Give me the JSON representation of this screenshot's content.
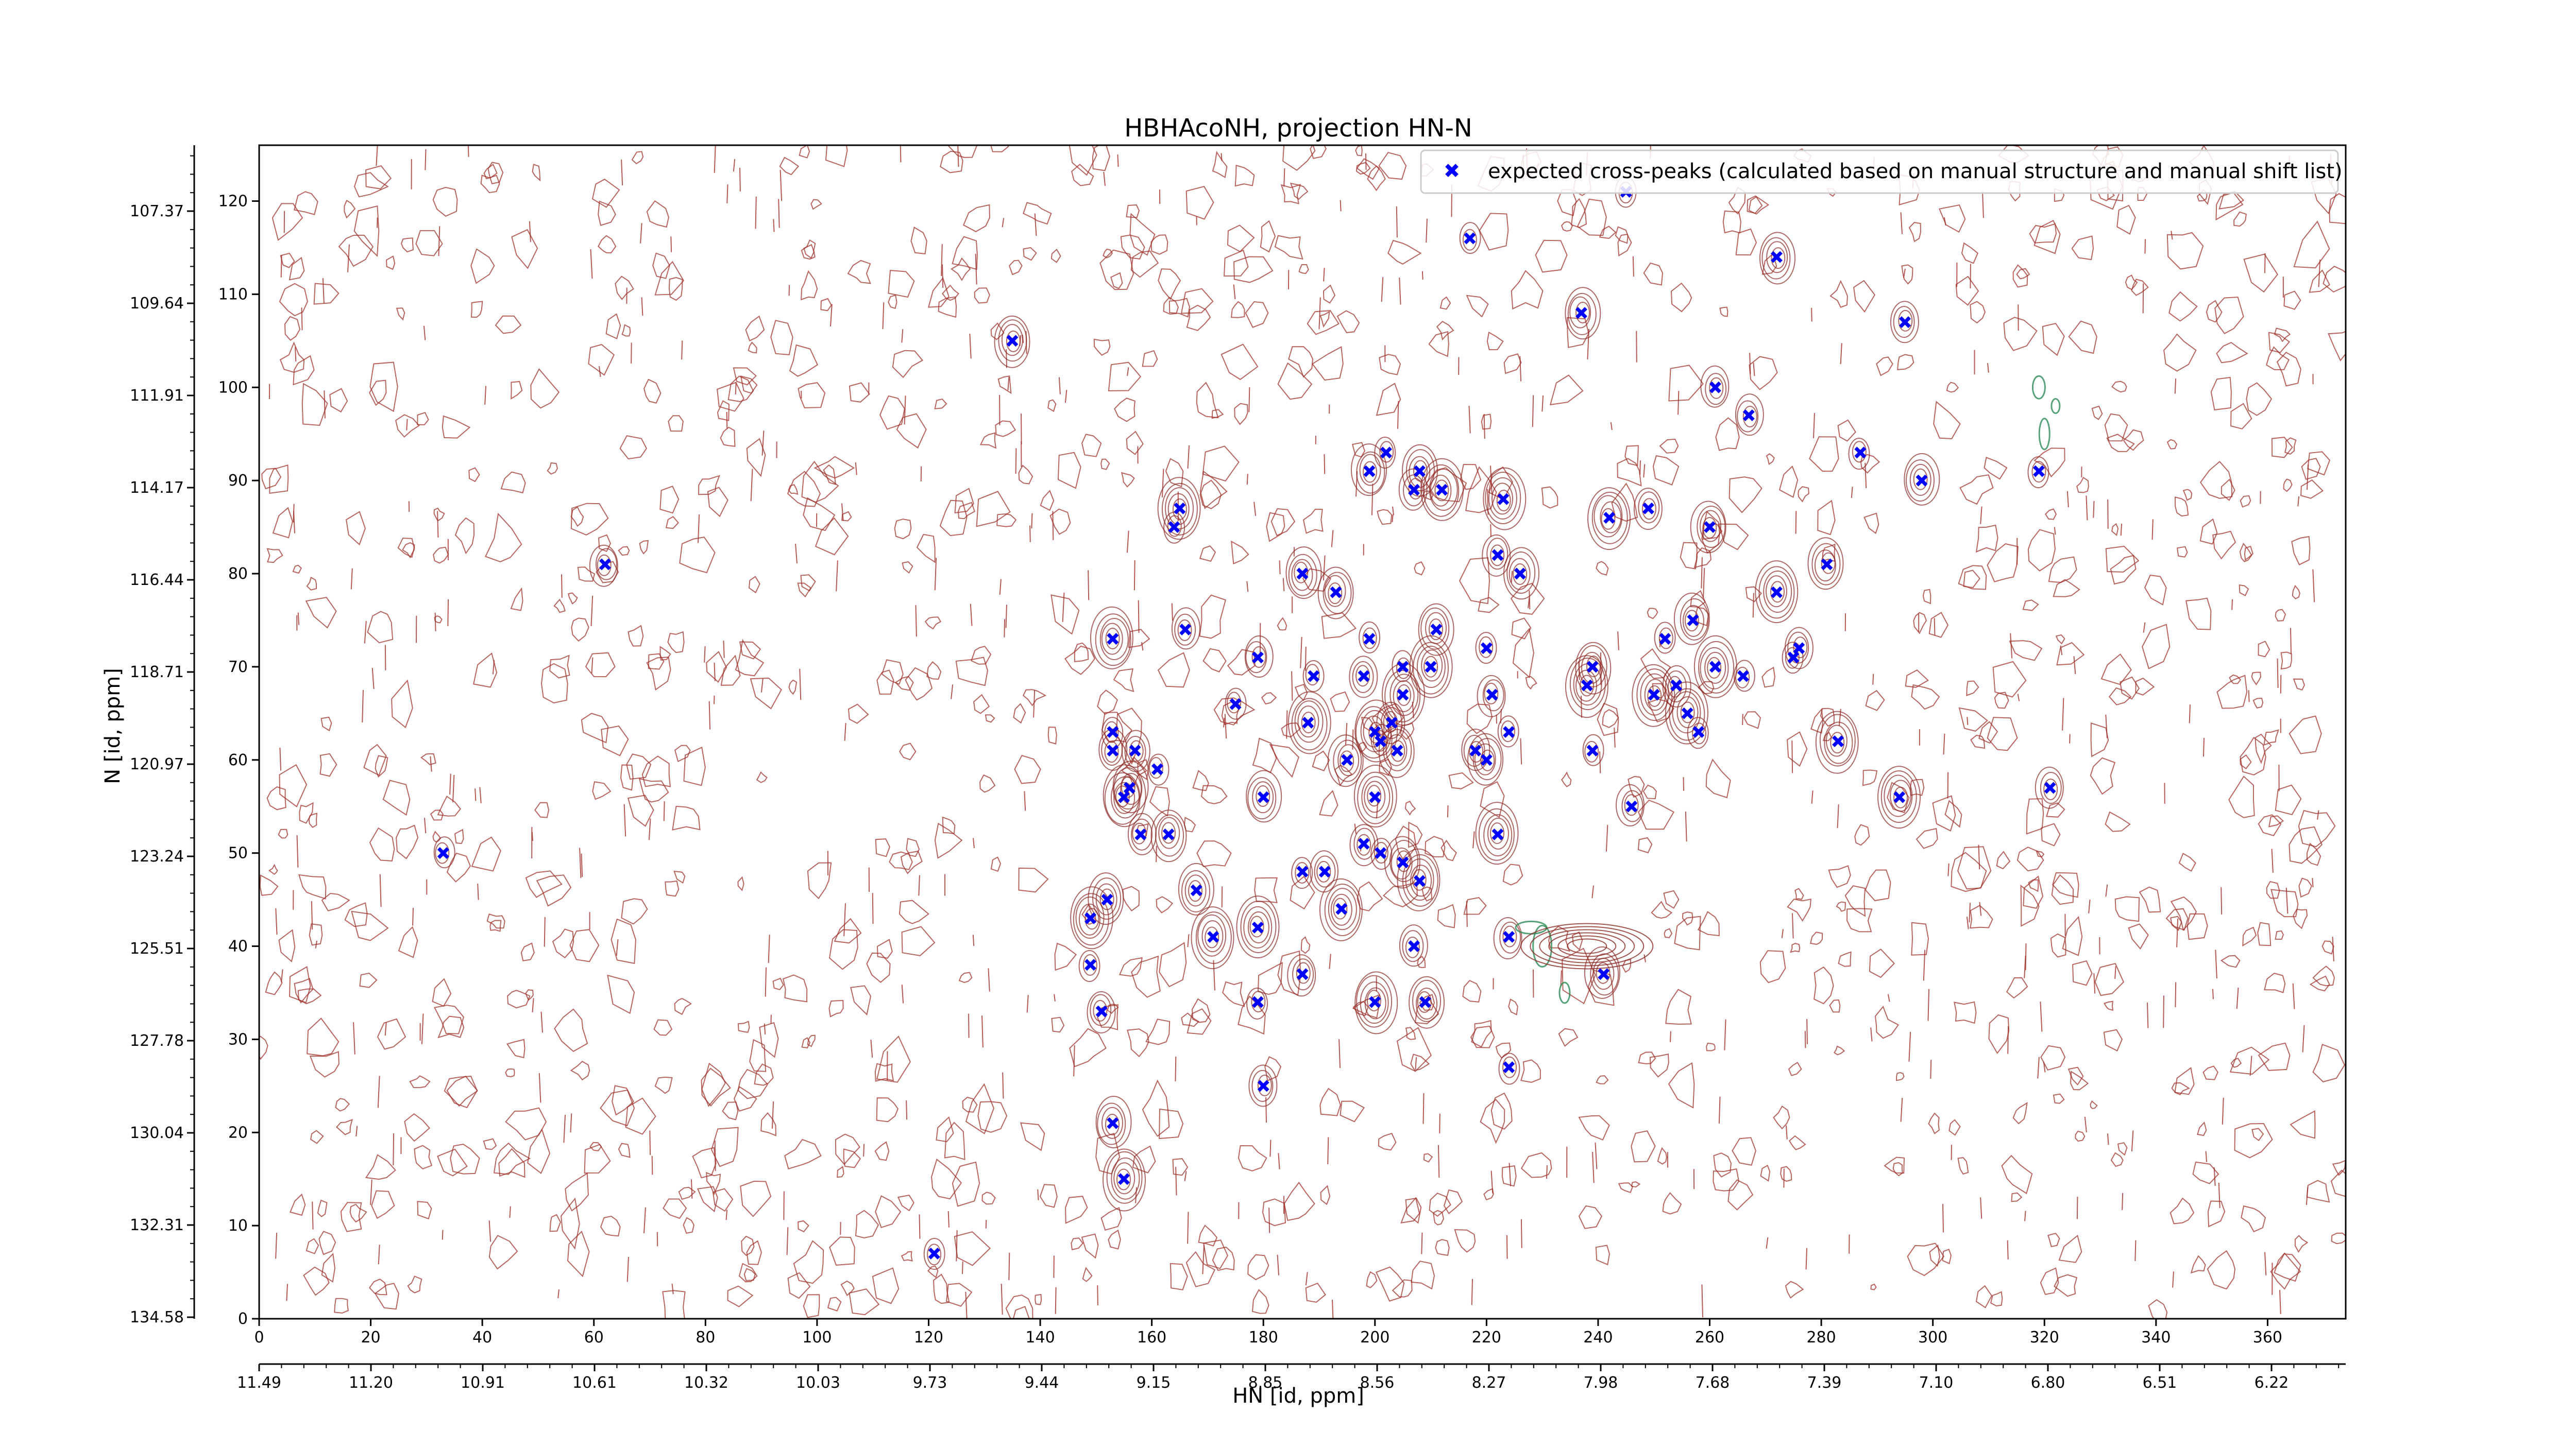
{
  "chart_data": {
    "type": "scatter",
    "title": "HBHAcoNH, projection HN-N",
    "xlabel": "HN [id, ppm]",
    "ylabel": "N [id, ppm]",
    "x_index_range": [
      0,
      374
    ],
    "y_index_range": [
      0,
      126
    ],
    "x_index_ticks": [
      "0",
      "20",
      "40",
      "60",
      "80",
      "100",
      "120",
      "140",
      "160",
      "180",
      "200",
      "220",
      "240",
      "260",
      "280",
      "300",
      "320",
      "340",
      "360"
    ],
    "y_index_ticks": [
      "0",
      "10",
      "20",
      "30",
      "40",
      "50",
      "60",
      "70",
      "80",
      "90",
      "100",
      "110",
      "120"
    ],
    "x_ppm_ticks": [
      "11.49",
      "11.20",
      "10.91",
      "10.61",
      "10.32",
      "10.03",
      "9.73",
      "9.44",
      "9.15",
      "8.85",
      "8.56",
      "8.27",
      "7.98",
      "7.68",
      "7.39",
      "7.10",
      "6.80",
      "6.51",
      "6.22"
    ],
    "y_ppm_ticks": [
      "107.37",
      "109.64",
      "111.91",
      "114.17",
      "116.44",
      "118.71",
      "120.97",
      "123.24",
      "125.51",
      "127.78",
      "130.04",
      "132.31",
      "134.58"
    ],
    "grid": false,
    "legend_position": "top-right",
    "series": [
      {
        "name": "expected cross-peaks (calculated based on manual structure and manual shift list)",
        "color": "#0000ff",
        "marker": "x",
        "points": [
          [
            33,
            50
          ],
          [
            62,
            81
          ],
          [
            135,
            105
          ],
          [
            153,
            73
          ],
          [
            153,
            63
          ],
          [
            153,
            61
          ],
          [
            152,
            45
          ],
          [
            149,
            43
          ],
          [
            149,
            38
          ],
          [
            151,
            33
          ],
          [
            153,
            21
          ],
          [
            155,
            15
          ],
          [
            121,
            7
          ],
          [
            157,
            61
          ],
          [
            156,
            57
          ],
          [
            155,
            56
          ],
          [
            161,
            59
          ],
          [
            158,
            52
          ],
          [
            163,
            52
          ],
          [
            165,
            87
          ],
          [
            164,
            85
          ],
          [
            166,
            74
          ],
          [
            168,
            46
          ],
          [
            171,
            41
          ],
          [
            175,
            66
          ],
          [
            179,
            71
          ],
          [
            180,
            56
          ],
          [
            179,
            42
          ],
          [
            179,
            34
          ],
          [
            180,
            25
          ],
          [
            187,
            80
          ],
          [
            188,
            64
          ],
          [
            189,
            69
          ],
          [
            191,
            48
          ],
          [
            193,
            78
          ],
          [
            194,
            44
          ],
          [
            187,
            48
          ],
          [
            187,
            37
          ],
          [
            199,
            91
          ],
          [
            200,
            56
          ],
          [
            199,
            73
          ],
          [
            198,
            69
          ],
          [
            195,
            60
          ],
          [
            200,
            63
          ],
          [
            201,
            62
          ],
          [
            203,
            64
          ],
          [
            204,
            61
          ],
          [
            205,
            67
          ],
          [
            202,
            93
          ],
          [
            207,
            89
          ],
          [
            208,
            91
          ],
          [
            212,
            89
          ],
          [
            217,
            116
          ],
          [
            222,
            82
          ],
          [
            226,
            80
          ],
          [
            223,
            88
          ],
          [
            220,
            72
          ],
          [
            221,
            67
          ],
          [
            220,
            60
          ],
          [
            222,
            52
          ],
          [
            224,
            63
          ],
          [
            218,
            61
          ],
          [
            211,
            74
          ],
          [
            210,
            70
          ],
          [
            205,
            70
          ],
          [
            207,
            40
          ],
          [
            209,
            34
          ],
          [
            200,
            34
          ],
          [
            201,
            50
          ],
          [
            198,
            51
          ],
          [
            205,
            49
          ],
          [
            208,
            47
          ],
          [
            224,
            27
          ],
          [
            224,
            41
          ],
          [
            237,
            108
          ],
          [
            242,
            86
          ],
          [
            245,
            121
          ],
          [
            249,
            87
          ],
          [
            239,
            70
          ],
          [
            238,
            68
          ],
          [
            239,
            61
          ],
          [
            246,
            55
          ],
          [
            241,
            37
          ],
          [
            250,
            67
          ],
          [
            252,
            73
          ],
          [
            254,
            68
          ],
          [
            257,
            75
          ],
          [
            256,
            65
          ],
          [
            258,
            63
          ],
          [
            261,
            100
          ],
          [
            260,
            85
          ],
          [
            261,
            70
          ],
          [
            266,
            69
          ],
          [
            267,
            97
          ],
          [
            272,
            114
          ],
          [
            272,
            78
          ],
          [
            275,
            71
          ],
          [
            276,
            72
          ],
          [
            281,
            81
          ],
          [
            283,
            62
          ],
          [
            287,
            93
          ],
          [
            295,
            107
          ],
          [
            298,
            90
          ],
          [
            294,
            56
          ],
          [
            319,
            91
          ],
          [
            321,
            57
          ]
        ]
      }
    ]
  }
}
